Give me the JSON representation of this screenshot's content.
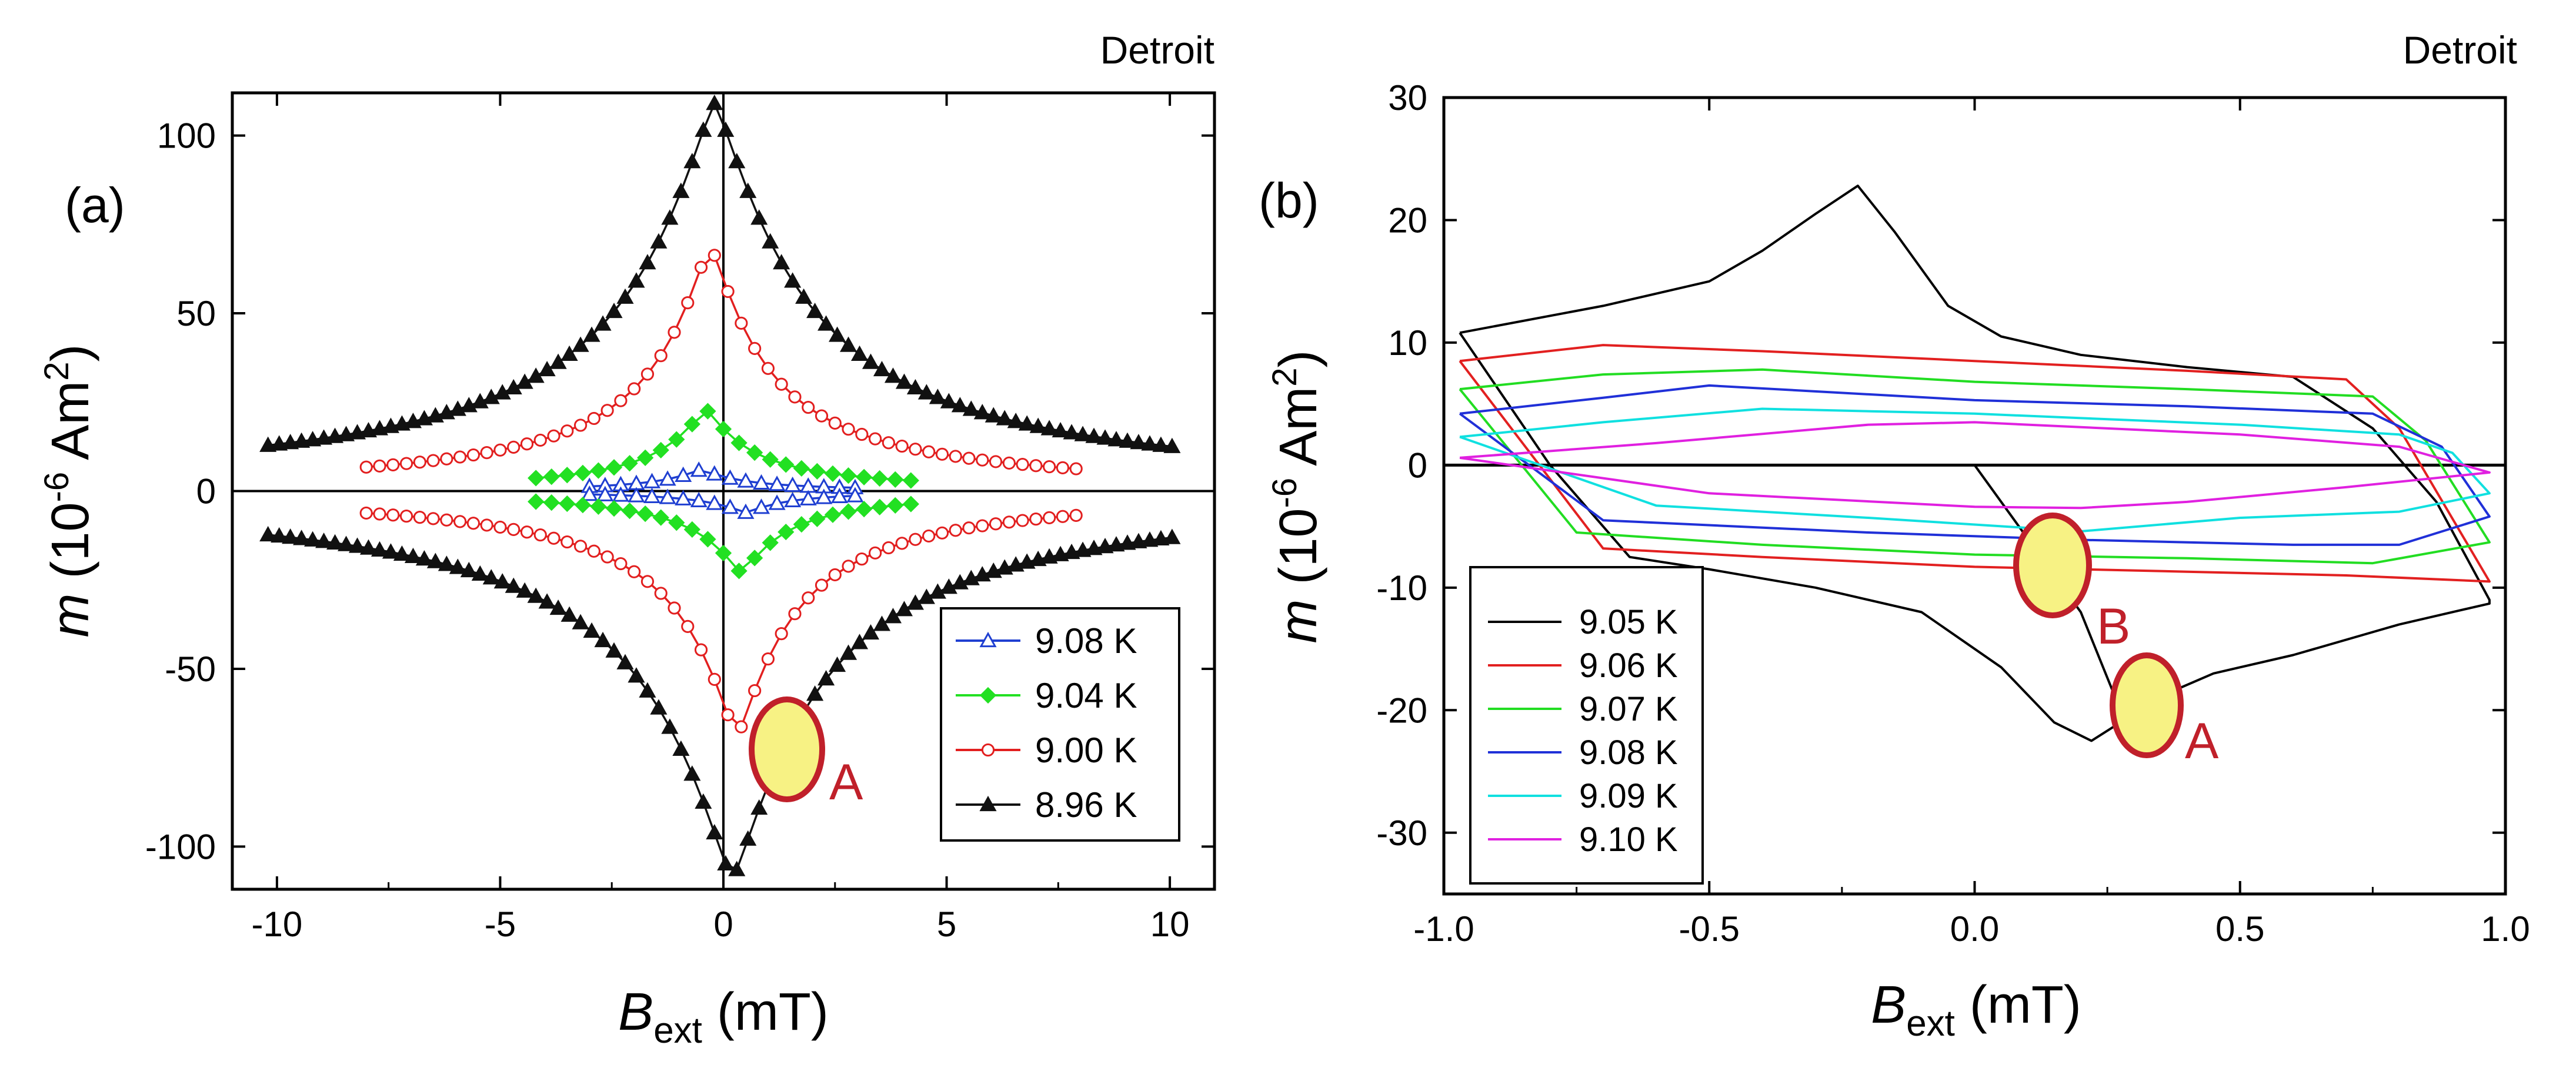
{
  "panel_a_label": "(a)",
  "panel_b_label": "(b)",
  "location_a": "Detroit",
  "location_b": "Detroit",
  "ylabel_var": "m",
  "ylabel_open": " (10",
  "ylabel_exp1": "-6",
  "ylabel_unit": " Am",
  "ylabel_exp2": "2",
  "ylabel_close": ")",
  "xlabel_var": "B",
  "xlabel_sub": "ext",
  "xlabel_unit": " (mT)",
  "annotations_a": [
    {
      "label": "A",
      "color": "#c0202a",
      "fill": "#f7f284"
    }
  ],
  "annotations_b": [
    {
      "label": "B",
      "color": "#c0202a",
      "fill": "#f7f284"
    },
    {
      "label": "A",
      "color": "#c0202a",
      "fill": "#f7f284"
    }
  ],
  "chart_data": [
    {
      "type": "line",
      "panel": "(a)",
      "title": "",
      "xlabel": "B_ext (mT)",
      "ylabel": "m (10^-6 Am^2)",
      "xlim": [
        -11,
        11
      ],
      "ylim": [
        -112,
        112
      ],
      "xticks": [
        -10,
        -5,
        0,
        5,
        10
      ],
      "yticks": [
        -100,
        -50,
        0,
        50,
        100
      ],
      "xtick_labels": [
        "-10",
        "-5",
        "0",
        "5",
        "10"
      ],
      "ytick_labels": [
        "-100",
        "-50",
        "0",
        "50",
        "100"
      ],
      "legend_position": "bottom-right",
      "series": [
        {
          "name": "9.08 K",
          "color": "#1f3fd1",
          "marker": "triangle-open",
          "amplitude": 6,
          "peak_shift": 0.5,
          "width": 0.9,
          "step": 0.35,
          "range": 3
        },
        {
          "name": "9.04 K",
          "color": "#22e022",
          "marker": "diamond",
          "amplitude": 23,
          "peak_shift": 0.4,
          "width": 1.0,
          "step": 0.35,
          "range": 4.2
        },
        {
          "name": "9.00 K",
          "color": "#e21f1f",
          "marker": "circle-open",
          "amplitude": 69,
          "peak_shift": 0.3,
          "width": 1.3,
          "step": 0.3,
          "range": 8
        },
        {
          "name": "8.96 K",
          "color": "#111111",
          "marker": "triangle",
          "amplitude": 109,
          "peak_shift": 0.2,
          "width": 2.0,
          "step": 0.25,
          "range": 10.2
        }
      ]
    },
    {
      "type": "line",
      "panel": "(b)",
      "title": "",
      "xlabel": "B_ext (mT)",
      "ylabel": "m (10^-6 Am^2)",
      "xlim": [
        -1.0,
        1.0
      ],
      "ylim": [
        -35,
        30
      ],
      "xticks": [
        -1.0,
        -0.5,
        0.0,
        0.5,
        1.0
      ],
      "yticks": [
        -30,
        -20,
        -10,
        0,
        10,
        20,
        30
      ],
      "xtick_labels": [
        "-1.0",
        "-0.5",
        "0.0",
        "0.5",
        "1.0"
      ],
      "ytick_labels": [
        "-30",
        "-20",
        "-10",
        "0",
        "10",
        "20",
        "30"
      ],
      "legend_position": "bottom-left",
      "series": [
        {
          "name": "9.05 K",
          "color": "#000000",
          "upper": [
            [
              -0.97,
              10.8
            ],
            [
              -0.7,
              13
            ],
            [
              -0.5,
              15
            ],
            [
              -0.4,
              17.5
            ],
            [
              -0.3,
              20.5
            ],
            [
              -0.22,
              22.8
            ],
            [
              -0.15,
              19
            ],
            [
              -0.05,
              13
            ],
            [
              0.05,
              10.5
            ],
            [
              0.2,
              9
            ],
            [
              0.4,
              8
            ],
            [
              0.6,
              7.2
            ],
            [
              0.75,
              3
            ],
            [
              0.87,
              -3
            ],
            [
              0.97,
              -11
            ]
          ],
          "lower": [
            [
              0.97,
              -11.3
            ],
            [
              0.8,
              -13
            ],
            [
              0.6,
              -15.5
            ],
            [
              0.45,
              -17
            ],
            [
              0.37,
              -18.5
            ],
            [
              0.3,
              -20.3
            ],
            [
              0.22,
              -22.5
            ],
            [
              0.15,
              -21
            ],
            [
              0.05,
              -16.5
            ],
            [
              -0.1,
              -12
            ],
            [
              -0.3,
              -10
            ],
            [
              -0.5,
              -8.5
            ],
            [
              -0.65,
              -7.5
            ],
            [
              -0.8,
              0
            ],
            [
              -0.97,
              10.8
            ]
          ],
          "extra": [
            [
              0.0,
              0.0
            ],
            [
              0.1,
              -6
            ],
            [
              0.2,
              -12
            ],
            [
              0.27,
              -19.5
            ],
            [
              0.3,
              -20.3
            ]
          ]
        },
        {
          "name": "9.06 K",
          "color": "#e22020",
          "upper": [
            [
              -0.97,
              8.5
            ],
            [
              -0.7,
              9.8
            ],
            [
              -0.4,
              9.3
            ],
            [
              0.0,
              8.5
            ],
            [
              0.4,
              7.7
            ],
            [
              0.7,
              7.0
            ],
            [
              0.8,
              3
            ],
            [
              0.97,
              -9.5
            ]
          ],
          "lower": [
            [
              0.97,
              -9.5
            ],
            [
              0.7,
              -9
            ],
            [
              0.4,
              -8.7
            ],
            [
              0.0,
              -8.3
            ],
            [
              -0.4,
              -7.5
            ],
            [
              -0.7,
              -6.8
            ],
            [
              -0.97,
              8.5
            ]
          ]
        },
        {
          "name": "9.07 K",
          "color": "#22dd22",
          "upper": [
            [
              -0.97,
              6.2
            ],
            [
              -0.7,
              7.4
            ],
            [
              -0.4,
              7.8
            ],
            [
              0.0,
              6.8
            ],
            [
              0.4,
              6.2
            ],
            [
              0.75,
              5.6
            ],
            [
              0.85,
              2
            ],
            [
              0.97,
              -6.3
            ]
          ],
          "lower": [
            [
              0.97,
              -6.3
            ],
            [
              0.75,
              -8
            ],
            [
              0.4,
              -7.6
            ],
            [
              0.0,
              -7.3
            ],
            [
              -0.4,
              -6.5
            ],
            [
              -0.75,
              -5.5
            ],
            [
              -0.97,
              6.2
            ]
          ]
        },
        {
          "name": "9.08 K",
          "color": "#2030d8",
          "upper": [
            [
              -0.97,
              4.2
            ],
            [
              -0.7,
              5.5
            ],
            [
              -0.5,
              6.5
            ],
            [
              0.0,
              5.3
            ],
            [
              0.4,
              4.8
            ],
            [
              0.75,
              4.2
            ],
            [
              0.88,
              1.5
            ],
            [
              0.97,
              -4.2
            ]
          ],
          "lower": [
            [
              0.97,
              -4.2
            ],
            [
              0.8,
              -6.5
            ],
            [
              0.6,
              -6.5
            ],
            [
              0.2,
              -6.1
            ],
            [
              -0.2,
              -5.5
            ],
            [
              -0.7,
              -4.5
            ],
            [
              -0.97,
              4.2
            ]
          ]
        },
        {
          "name": "9.09 K",
          "color": "#10e0e0",
          "upper": [
            [
              -0.97,
              2.3
            ],
            [
              -0.7,
              3.5
            ],
            [
              -0.4,
              4.6
            ],
            [
              0.0,
              4.2
            ],
            [
              0.5,
              3.3
            ],
            [
              0.8,
              2.5
            ],
            [
              0.9,
              1
            ],
            [
              0.97,
              -2.3
            ]
          ],
          "lower": [
            [
              0.97,
              -2.3
            ],
            [
              0.8,
              -3.8
            ],
            [
              0.5,
              -4.3
            ],
            [
              0.2,
              -5.4
            ],
            [
              -0.2,
              -4.3
            ],
            [
              -0.6,
              -3.3
            ],
            [
              -0.97,
              2.3
            ]
          ]
        },
        {
          "name": "9.10 K",
          "color": "#e020e0",
          "upper": [
            [
              -0.97,
              0.6
            ],
            [
              -0.6,
              1.8
            ],
            [
              -0.2,
              3.3
            ],
            [
              0.0,
              3.5
            ],
            [
              0.5,
              2.5
            ],
            [
              0.8,
              1.5
            ],
            [
              0.97,
              -0.6
            ]
          ],
          "lower": [
            [
              0.97,
              -0.6
            ],
            [
              0.7,
              -1.8
            ],
            [
              0.4,
              -3.0
            ],
            [
              0.2,
              -3.5
            ],
            [
              0.0,
              -3.4
            ],
            [
              -0.5,
              -2.3
            ],
            [
              -0.97,
              0.6
            ]
          ]
        }
      ]
    }
  ]
}
